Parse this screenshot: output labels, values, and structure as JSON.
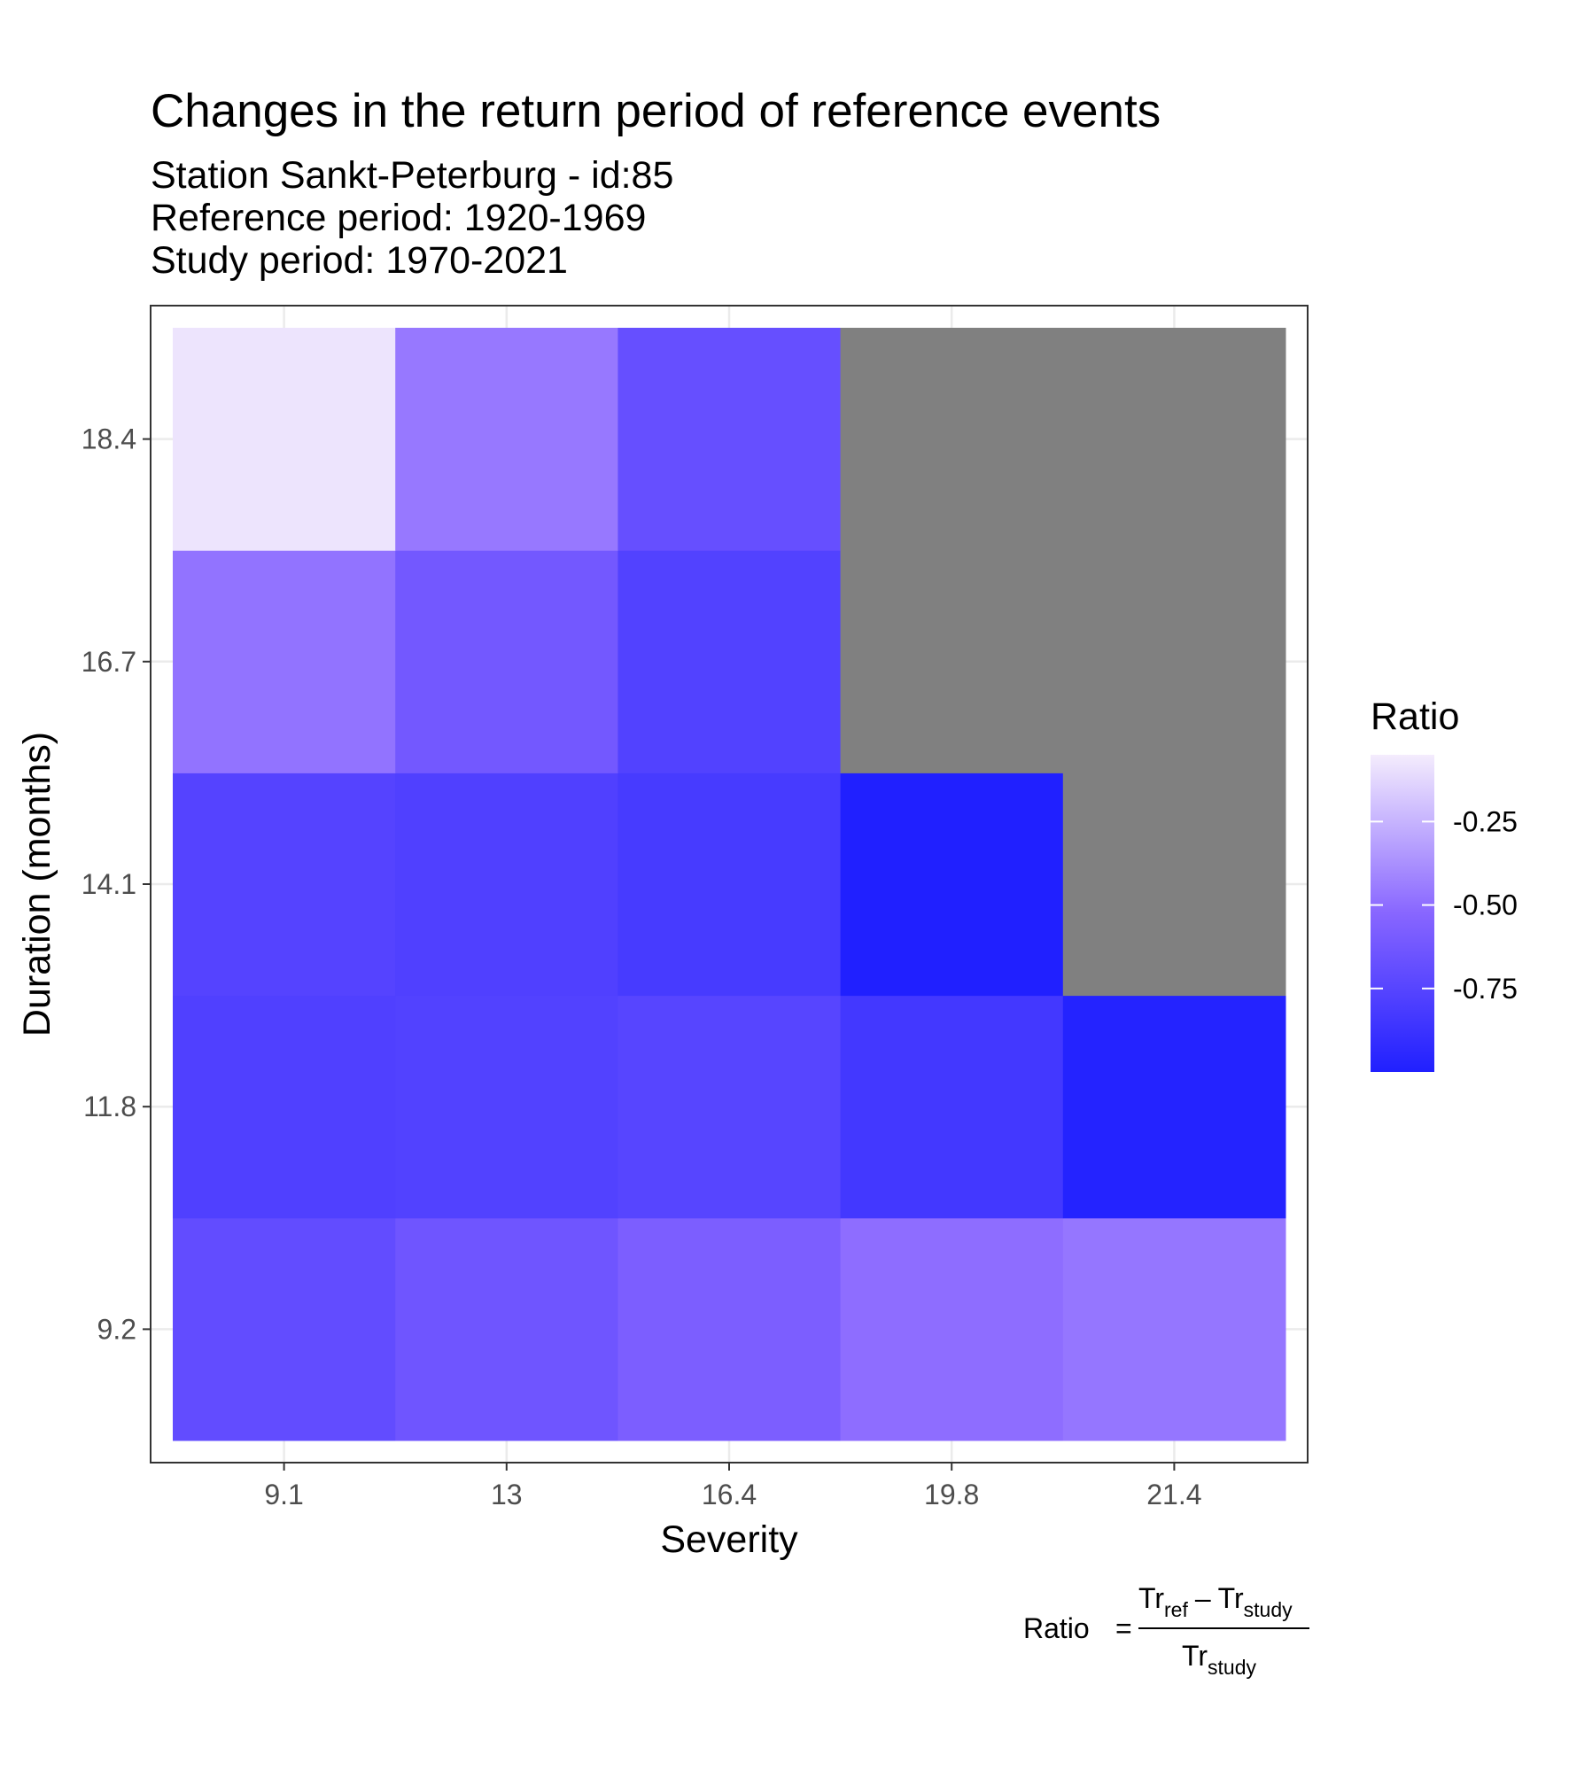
{
  "chart_data": {
    "type": "heatmap",
    "title": "Changes in the return period of reference events",
    "subtitle_lines": [
      "Station Sankt-Peterburg - id:85",
      "Reference period: 1920-1969",
      "Study period: 1970-2021"
    ],
    "xlabel": "Severity",
    "ylabel": "Duration (months)",
    "x_categories": [
      "9.1",
      "13",
      "16.4",
      "19.8",
      "21.4"
    ],
    "y_categories": [
      "9.2",
      "11.8",
      "14.1",
      "16.7",
      "18.4"
    ],
    "values": [
      [
        -0.7,
        -0.64,
        -0.58,
        -0.5,
        -0.47
      ],
      [
        -0.78,
        -0.77,
        -0.75,
        -0.84,
        -0.98
      ],
      [
        -0.76,
        -0.78,
        -0.82,
        -1.0,
        null
      ],
      [
        -0.48,
        -0.62,
        -0.77,
        null,
        null
      ],
      [
        -0.08,
        -0.46,
        -0.68,
        null,
        null
      ]
    ],
    "na_color": "#808080",
    "color_scale": {
      "low_value": -1.0,
      "high_value": -0.05,
      "low_color": "#2020ff",
      "mid_color": "#8866ff",
      "high_color": "#f4ecfd"
    },
    "legend": {
      "title": "Ratio",
      "placement": "right",
      "breaks": [
        -0.25,
        -0.5,
        -0.75
      ],
      "break_labels": [
        "-0.25",
        "-0.50",
        "-0.75"
      ]
    },
    "grid": true
  },
  "caption": {
    "lhs": "Ratio",
    "equals": "=",
    "tr": "Tr",
    "ref": "ref",
    "study": "study",
    "minus": "–"
  }
}
